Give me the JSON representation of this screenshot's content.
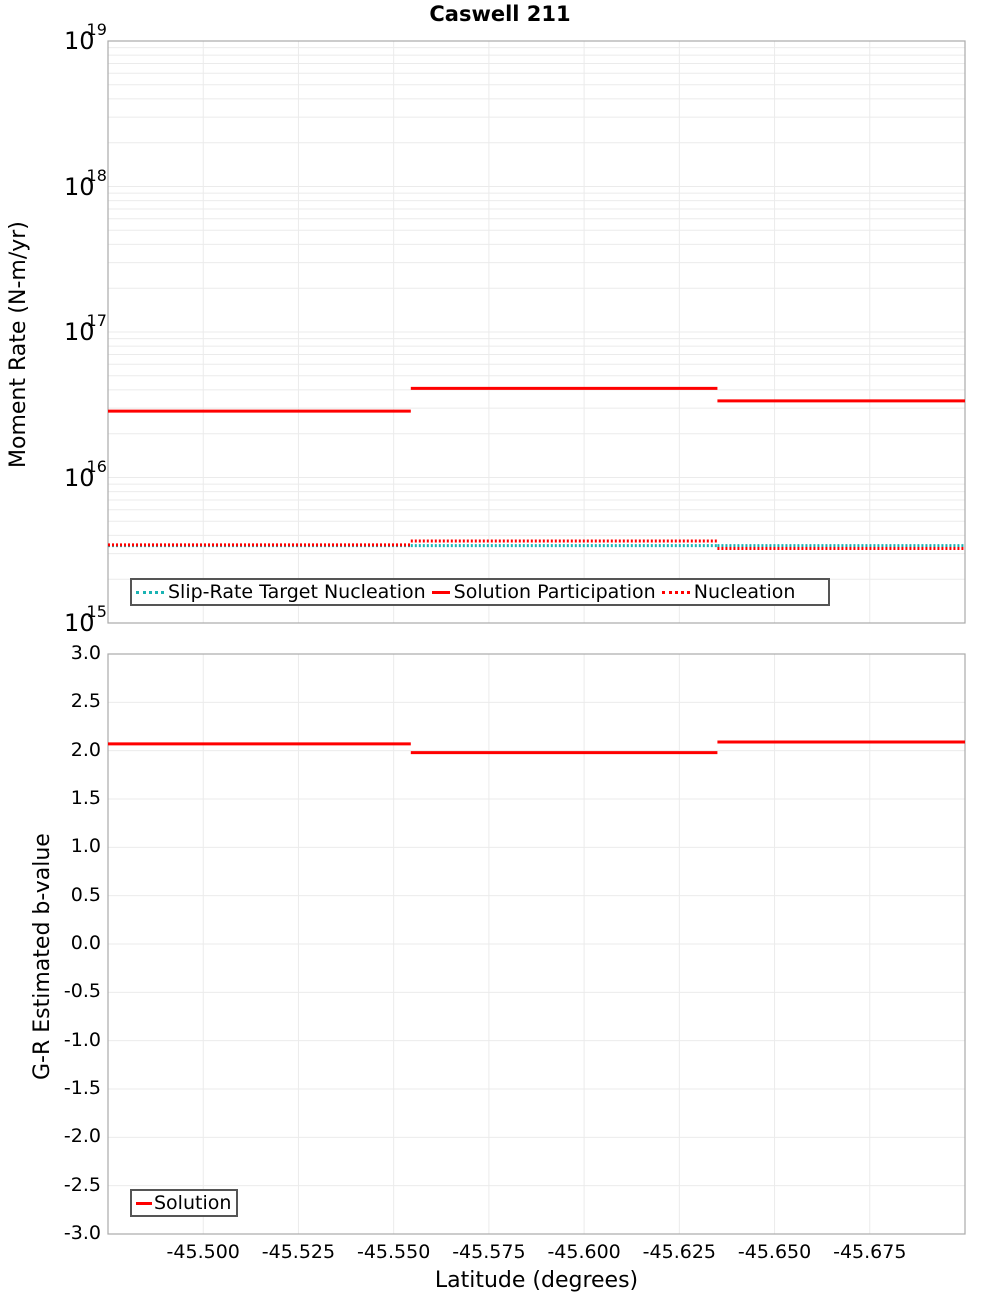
{
  "title": "Caswell 211",
  "chart_data": [
    {
      "type": "line",
      "title": "Caswell 211",
      "xlabel": "Latitude (degrees)",
      "ylabel": "Moment Rate (N-m/yr)",
      "yscale": "log",
      "ylim": [
        1000000000000000.0,
        1e+19
      ],
      "xlim": [
        -45.475,
        -45.7
      ],
      "x_inverted": true,
      "ytick_labels": [
        "10^15",
        "10^16",
        "10^17",
        "10^18",
        "10^19"
      ],
      "grid": true,
      "legend_position": "lower left",
      "segments_x": [
        [
          -45.475,
          -45.5545
        ],
        [
          -45.5545,
          -45.635
        ],
        [
          -45.635,
          -45.7
        ]
      ],
      "series": [
        {
          "name": "Slip-Rate Target Nucleation",
          "style": "dotted",
          "color": "#1ab3b3",
          "values": [
            3400000000000000.0,
            3400000000000000.0,
            3400000000000000.0
          ]
        },
        {
          "name": "Solution Participation",
          "style": "solid",
          "color": "#ff0000",
          "values": [
            2.86e+16,
            4.1e+16,
            3.36e+16
          ]
        },
        {
          "name": "Nucleation",
          "style": "dotted",
          "color": "#ff0000",
          "values": [
            3440000000000000.0,
            3660000000000000.0,
            3250000000000000.0
          ]
        }
      ]
    },
    {
      "type": "line",
      "title": "",
      "xlabel": "Latitude (degrees)",
      "ylabel": "G-R Estimated b-value",
      "ylim": [
        -3.0,
        3.0
      ],
      "xlim": [
        -45.475,
        -45.7
      ],
      "x_inverted": true,
      "xtick_labels": [
        "-45.500",
        "-45.525",
        "-45.550",
        "-45.575",
        "-45.600",
        "-45.625",
        "-45.650",
        "-45.675"
      ],
      "ytick_labels": [
        "3.0",
        "2.5",
        "2.0",
        "1.5",
        "1.0",
        "0.5",
        "0.0",
        "-0.5",
        "-1.0",
        "-1.5",
        "-2.0",
        "-2.5",
        "-3.0"
      ],
      "grid": true,
      "legend_position": "lower left",
      "segments_x": [
        [
          -45.475,
          -45.5545
        ],
        [
          -45.5545,
          -45.635
        ],
        [
          -45.635,
          -45.7
        ]
      ],
      "series": [
        {
          "name": "Solution",
          "style": "solid",
          "color": "#ff0000",
          "values": [
            2.07,
            1.98,
            2.09
          ]
        }
      ]
    }
  ],
  "top": {
    "ylabel": "Moment Rate (N-m/yr)",
    "yticks": [
      {
        "base": "10",
        "exp": "19"
      },
      {
        "base": "10",
        "exp": "18"
      },
      {
        "base": "10",
        "exp": "17"
      },
      {
        "base": "10",
        "exp": "16"
      },
      {
        "base": "10",
        "exp": "15"
      }
    ],
    "legend": [
      "Slip-Rate Target Nucleation",
      "Solution Participation",
      "Nucleation"
    ]
  },
  "bottom": {
    "ylabel": "G-R Estimated b-value",
    "yticks": [
      "3.0",
      "2.5",
      "2.0",
      "1.5",
      "1.0",
      "0.5",
      "0.0",
      "-0.5",
      "-1.0",
      "-1.5",
      "-2.0",
      "-2.5",
      "-3.0"
    ],
    "legend": [
      "Solution"
    ],
    "xticks": [
      "-45.500",
      "-45.525",
      "-45.550",
      "-45.575",
      "-45.600",
      "-45.625",
      "-45.650",
      "-45.675"
    ],
    "xlabel": "Latitude (degrees)"
  }
}
